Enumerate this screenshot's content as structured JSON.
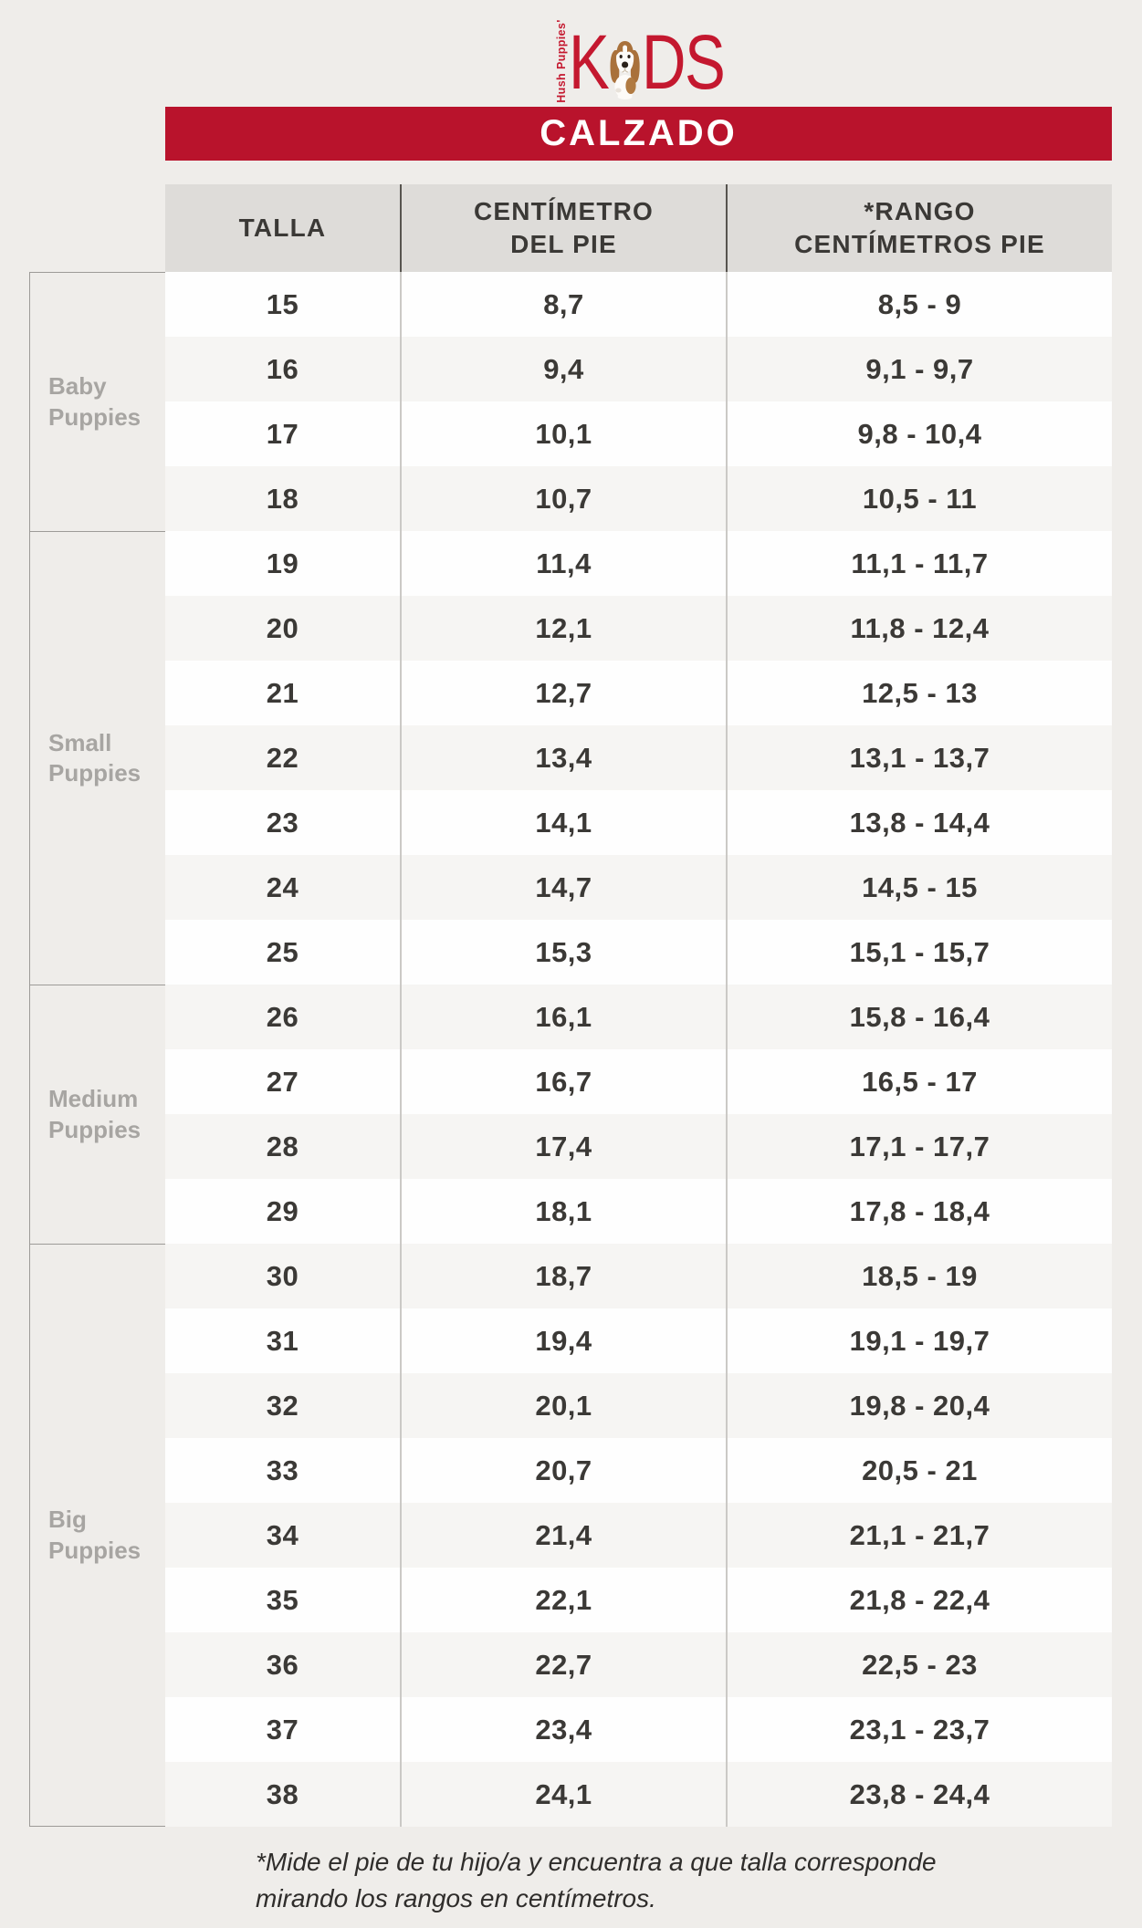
{
  "logo": {
    "vertical_text": "Hush Puppies'",
    "word_start": "K",
    "word_end": "DS",
    "color": "#C4182F",
    "dog_icon": "basset-hound-dog"
  },
  "banner": {
    "label": "CALZADO",
    "bg_color": "#B9132C",
    "text_color": "#FFFFFF"
  },
  "table": {
    "headers": [
      {
        "id": "talla",
        "lines": [
          "TALLA"
        ]
      },
      {
        "id": "centimetro-del-pie",
        "lines": [
          "CENTÍMETRO",
          "DEL PIE"
        ]
      },
      {
        "id": "rango-centimetros-pie",
        "lines": [
          "*RANGO",
          "CENTÍMETROS PIE"
        ]
      }
    ],
    "groups": [
      {
        "id": "baby-puppies",
        "label_lines": [
          "Baby",
          "Puppies"
        ],
        "rows": [
          [
            "15",
            "8,7",
            "8,5 - 9"
          ],
          [
            "16",
            "9,4",
            "9,1 - 9,7"
          ],
          [
            "17",
            "10,1",
            "9,8 - 10,4"
          ],
          [
            "18",
            "10,7",
            "10,5 - 11"
          ]
        ]
      },
      {
        "id": "small-puppies",
        "label_lines": [
          "Small",
          "Puppies"
        ],
        "rows": [
          [
            "19",
            "11,4",
            "11,1 - 11,7"
          ],
          [
            "20",
            "12,1",
            "11,8 - 12,4"
          ],
          [
            "21",
            "12,7",
            "12,5 - 13"
          ],
          [
            "22",
            "13,4",
            "13,1 - 13,7"
          ],
          [
            "23",
            "14,1",
            "13,8 - 14,4"
          ],
          [
            "24",
            "14,7",
            "14,5 - 15"
          ],
          [
            "25",
            "15,3",
            "15,1 - 15,7"
          ]
        ]
      },
      {
        "id": "medium-puppies",
        "label_lines": [
          "Medium",
          "Puppies"
        ],
        "rows": [
          [
            "26",
            "16,1",
            "15,8 - 16,4"
          ],
          [
            "27",
            "16,7",
            "16,5 - 17"
          ],
          [
            "28",
            "17,4",
            "17,1 - 17,7"
          ],
          [
            "29",
            "18,1",
            "17,8 - 18,4"
          ]
        ]
      },
      {
        "id": "big-puppies",
        "label_lines": [
          "Big",
          "Puppies"
        ],
        "rows": [
          [
            "30",
            "18,7",
            "18,5 - 19"
          ],
          [
            "31",
            "19,4",
            "19,1 - 19,7"
          ],
          [
            "32",
            "20,1",
            "19,8 - 20,4"
          ],
          [
            "33",
            "20,7",
            "20,5 - 21"
          ],
          [
            "34",
            "21,4",
            "21,1 - 21,7"
          ],
          [
            "35",
            "22,1",
            "21,8 - 22,4"
          ],
          [
            "36",
            "22,7",
            "22,5 - 23"
          ],
          [
            "37",
            "23,4",
            "23,1 - 23,7"
          ],
          [
            "38",
            "24,1",
            "23,8 - 24,4"
          ]
        ]
      }
    ]
  },
  "footnote": {
    "line1": "*Mide el pie de tu hijo/a y encuentra a que talla corresponde",
    "line2": "mirando los rangos en centímetros."
  }
}
